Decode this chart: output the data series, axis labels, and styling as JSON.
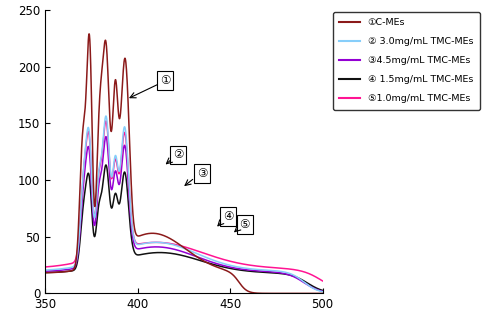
{
  "x_min": 350,
  "x_max": 500,
  "y_min": 0,
  "y_max": 250,
  "x_ticks": [
    350,
    400,
    450,
    500
  ],
  "y_ticks": [
    0,
    50,
    100,
    150,
    200,
    250
  ],
  "series": {
    "1_C_MEs": {
      "color": "#8B1A1A",
      "label": "①C-MEs",
      "linewidth": 1.1
    },
    "2_3mg": {
      "color": "#87CEFA",
      "label": "② 3.0mg/mL TMC-MEs",
      "linewidth": 1.1
    },
    "3_45mg": {
      "color": "#9400D3",
      "label": "③4.5mg/mL TMC-MEs",
      "linewidth": 1.1
    },
    "4_15mg": {
      "color": "#111111",
      "label": "④ 1.5mg/mL TMC-MEs",
      "linewidth": 1.1
    },
    "5_1mg": {
      "color": "#FF1493",
      "label": "⑤1.0mg/mL TMC-MEs",
      "linewidth": 1.1
    }
  },
  "legend_labels": [
    "①C-MEs",
    "② 3.0mg/mL TMC-MEs",
    "③4.5mg/mL TMC-MEs",
    "④ 1.5mg/mL TMC-MEs",
    "⑤1.0mg/mL TMC-MEs"
  ]
}
